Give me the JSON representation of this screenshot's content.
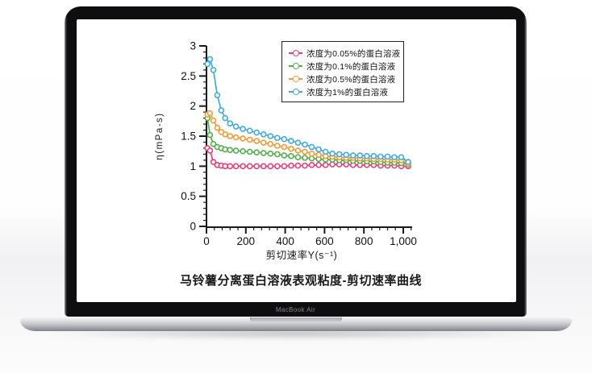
{
  "device": {
    "bezel_label": "MacBook Air"
  },
  "chart_data": {
    "type": "line",
    "title": "马铃薯分离蛋白溶液表观粘度-剪切速率曲线",
    "xlabel": "剪切速率Y(s⁻¹)",
    "ylabel": "η(mPa-s)",
    "xlim": [
      0,
      1045
    ],
    "ylim": [
      0,
      3
    ],
    "grid": false,
    "legend_position": "top-right-inside",
    "axis_color": "#1a1a1a",
    "x_ticks": {
      "values": [
        0,
        200,
        400,
        600,
        800,
        1000
      ],
      "labels": [
        "0",
        "200",
        "400",
        "600",
        "800",
        "1,000"
      ],
      "minor_step": 40
    },
    "y_ticks": {
      "values": [
        0,
        0.5,
        1,
        1.5,
        2,
        2.5,
        3
      ],
      "labels": [
        "0",
        "0.5",
        "1",
        "1.5",
        "2",
        "2.5",
        "3"
      ],
      "minor_step": 0.1
    },
    "x": [
      5,
      18,
      35,
      55,
      75,
      95,
      120,
      150,
      185,
      220,
      255,
      290,
      325,
      360,
      395,
      430,
      465,
      500,
      535,
      570,
      605,
      640,
      675,
      710,
      745,
      780,
      815,
      850,
      885,
      920,
      955,
      990,
      1025
    ],
    "series": [
      {
        "name": "0.05%",
        "label": "浓度为0.05%的蛋白溶液",
        "color": "#e7417a",
        "values": [
          1.3,
          1.26,
          1.07,
          1.02,
          1.01,
          1.0,
          1.0,
          1.0,
          1.0,
          1.0,
          1.0,
          1.0,
          1.0,
          1.0,
          1.0,
          1.01,
          1.01,
          1.01,
          1.02,
          1.02,
          1.02,
          1.03,
          1.03,
          1.03,
          1.02,
          1.02,
          1.02,
          1.02,
          1.01,
          1.01,
          1.01,
          1.0,
          1.0
        ]
      },
      {
        "name": "0.1%",
        "label": "浓度为0.1%的蛋白溶液",
        "color": "#53b04c",
        "values": [
          1.8,
          1.52,
          1.37,
          1.32,
          1.3,
          1.28,
          1.27,
          1.26,
          1.25,
          1.24,
          1.23,
          1.22,
          1.21,
          1.2,
          1.18,
          1.17,
          1.15,
          1.14,
          1.13,
          1.12,
          1.11,
          1.11,
          1.1,
          1.1,
          1.09,
          1.09,
          1.08,
          1.08,
          1.07,
          1.06,
          1.06,
          1.05,
          1.03
        ]
      },
      {
        "name": "0.5%",
        "label": "浓度为0.5%的蛋白溶液",
        "color": "#f59a33",
        "values": [
          1.86,
          1.88,
          1.76,
          1.64,
          1.57,
          1.53,
          1.5,
          1.48,
          1.46,
          1.44,
          1.42,
          1.39,
          1.37,
          1.34,
          1.32,
          1.29,
          1.26,
          1.24,
          1.21,
          1.19,
          1.17,
          1.16,
          1.15,
          1.14,
          1.14,
          1.13,
          1.13,
          1.12,
          1.12,
          1.11,
          1.11,
          1.1,
          1.04
        ]
      },
      {
        "name": "1%",
        "label": "浓度为1%的蛋白溶液",
        "color": "#3fabe4",
        "values": [
          2.7,
          2.78,
          2.6,
          2.18,
          1.93,
          1.8,
          1.71,
          1.66,
          1.62,
          1.59,
          1.56,
          1.53,
          1.5,
          1.47,
          1.45,
          1.42,
          1.39,
          1.36,
          1.32,
          1.28,
          1.24,
          1.21,
          1.2,
          1.19,
          1.18,
          1.18,
          1.17,
          1.17,
          1.16,
          1.16,
          1.15,
          1.15,
          1.07
        ]
      }
    ]
  }
}
